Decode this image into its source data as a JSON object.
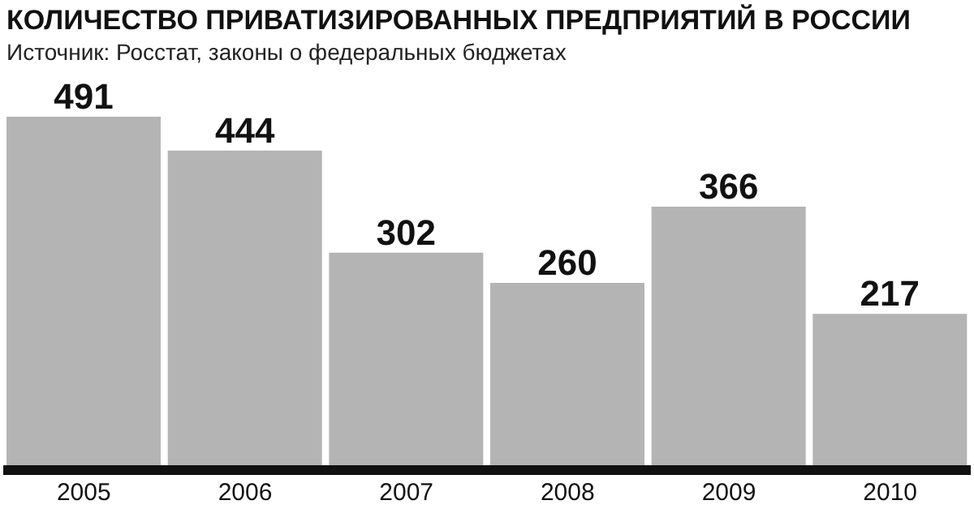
{
  "chart_data": {
    "type": "bar",
    "title": "КОЛИЧЕСТВО ПРИВАТИЗИРОВАННЫХ ПРЕДПРИЯТИЙ В РОССИИ",
    "subtitle": "Источник: Росстат, законы о федеральных бюджетах",
    "categories": [
      "2005",
      "2006",
      "2007",
      "2008",
      "2009",
      "2010"
    ],
    "values": [
      491,
      444,
      302,
      260,
      366,
      217
    ],
    "color": "#b4b4b4",
    "data_labels": true
  }
}
